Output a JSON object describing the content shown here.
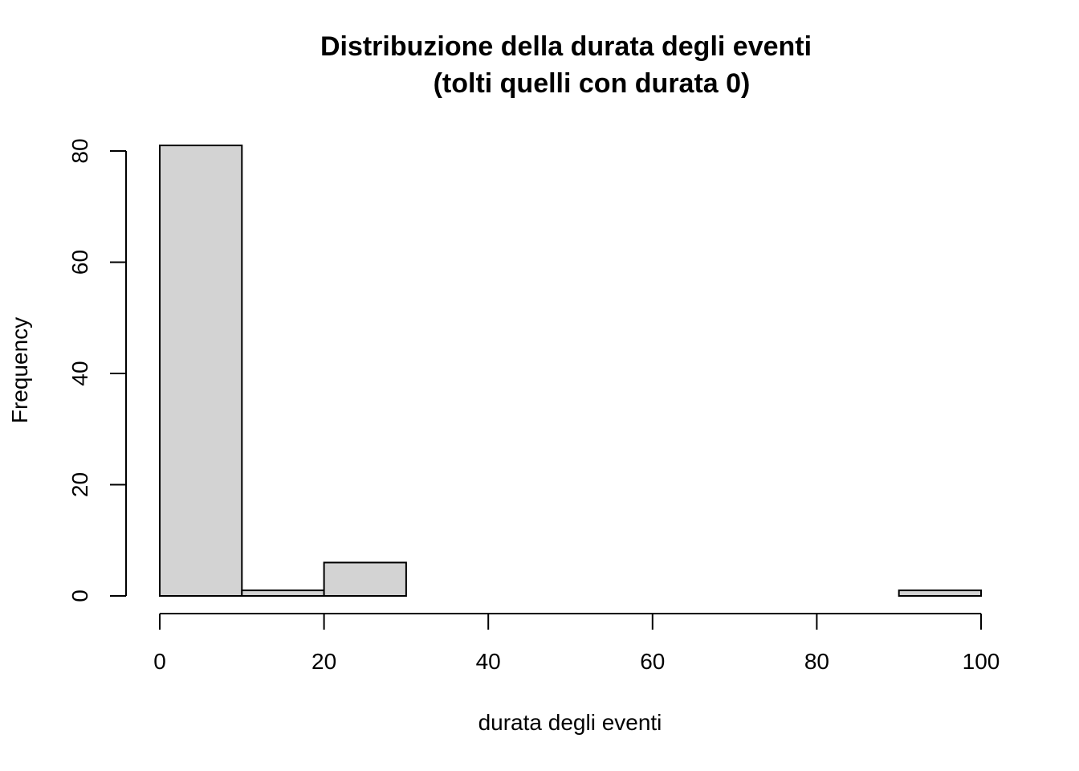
{
  "chart_data": {
    "type": "bar",
    "title": "Distribuzione della durata degli eventi",
    "subtitle": "(tolti quelli con durata 0)",
    "xlabel": "durata degli eventi",
    "ylabel": "Frequency",
    "bins": [
      {
        "x0": 0,
        "x1": 10,
        "count": 81
      },
      {
        "x0": 10,
        "x1": 20,
        "count": 1
      },
      {
        "x0": 20,
        "x1": 30,
        "count": 6
      },
      {
        "x0": 30,
        "x1": 40,
        "count": 0
      },
      {
        "x0": 40,
        "x1": 50,
        "count": 0
      },
      {
        "x0": 50,
        "x1": 60,
        "count": 0
      },
      {
        "x0": 60,
        "x1": 70,
        "count": 0
      },
      {
        "x0": 70,
        "x1": 80,
        "count": 0
      },
      {
        "x0": 80,
        "x1": 90,
        "count": 0
      },
      {
        "x0": 90,
        "x1": 100,
        "count": 1
      }
    ],
    "xlim": [
      0,
      100
    ],
    "ylim": [
      0,
      80
    ],
    "xticks": [
      0,
      20,
      40,
      60,
      80,
      100
    ],
    "yticks": [
      0,
      20,
      40,
      60,
      80
    ],
    "grid": false,
    "bar_color": "#d3d3d3",
    "edge_color": "#000000"
  }
}
